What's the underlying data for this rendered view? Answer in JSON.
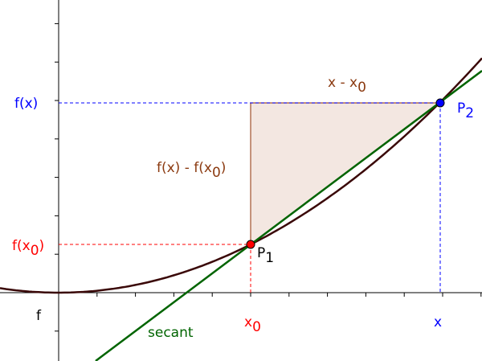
{
  "labels": [
    {
      "parts": [
        {
          "text": "f(x)"
        }
      ]
    },
    {
      "parts": [
        {
          "text": "f(x"
        },
        {
          "sub": "0"
        },
        {
          "text": ")"
        }
      ]
    },
    {
      "parts": [
        {
          "text": "x - x"
        },
        {
          "sub": "0"
        }
      ]
    },
    {
      "parts": [
        {
          "text": "P"
        },
        {
          "sub": "2"
        }
      ]
    },
    {
      "parts": [
        {
          "text": "f(x) - f(x"
        },
        {
          "sub": "0"
        },
        {
          "text": ")"
        }
      ]
    },
    {
      "parts": [
        {
          "text": "P"
        },
        {
          "sub": "1"
        }
      ]
    },
    {
      "parts": [
        {
          "text": "f"
        }
      ]
    },
    {
      "parts": [
        {
          "text": "secant"
        }
      ]
    },
    {
      "parts": [
        {
          "text": "x"
        },
        {
          "sub": "0"
        }
      ]
    },
    {
      "parts": [
        {
          "text": "x"
        }
      ]
    }
  ]
}
